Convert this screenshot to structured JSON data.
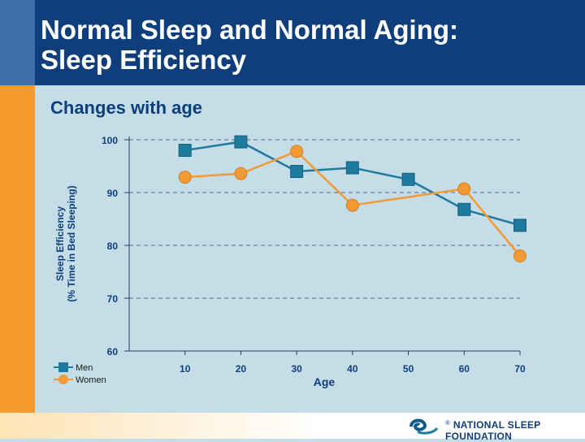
{
  "slide": {
    "title_line1": "Normal Sleep and Normal Aging:",
    "title_line2": "Sleep Efficiency",
    "subtitle": "Changes with age",
    "organization": "National Sleep Foundation",
    "registered_mark": "®"
  },
  "colors": {
    "header": "#0e3e7c",
    "accent_orange": "#f59a2c",
    "men": "#1f7aa0",
    "women": "#f29a34",
    "background": "#c4dde6"
  },
  "chart_data": {
    "type": "line",
    "title": "",
    "xlabel": "Age",
    "ylabel_line1": "Sleep Efficiency",
    "ylabel_line2": "(% Time in Bed Sleeping)",
    "x": [
      10,
      20,
      30,
      40,
      50,
      60,
      70
    ],
    "xlim": [
      0,
      70
    ],
    "ylim": [
      60,
      100
    ],
    "yticks": [
      60,
      70,
      80,
      90,
      100
    ],
    "grid": "horizontal-dashed",
    "legend": "bottom-left",
    "series": [
      {
        "name": "Men",
        "marker": "square",
        "values": [
          98,
          99.6,
          94,
          94.7,
          92.5,
          86.8,
          83.8
        ]
      },
      {
        "name": "Women",
        "marker": "circle",
        "values": [
          92.9,
          93.6,
          97.8,
          87.6,
          null,
          90.7,
          78
        ]
      }
    ]
  }
}
